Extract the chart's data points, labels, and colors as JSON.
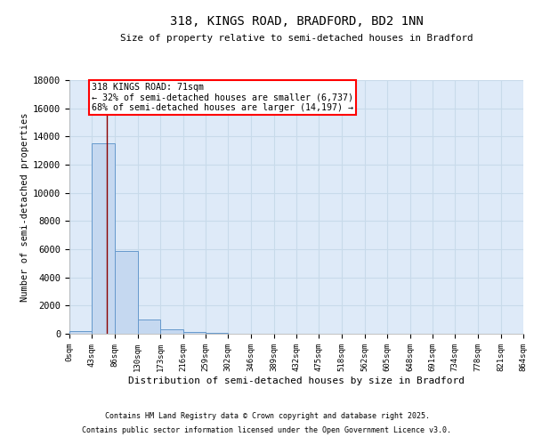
{
  "title": "318, KINGS ROAD, BRADFORD, BD2 1NN",
  "subtitle": "Size of property relative to semi-detached houses in Bradford",
  "xlabel": "Distribution of semi-detached houses by size in Bradford",
  "ylabel": "Number of semi-detached properties",
  "bin_edges": [
    0,
    43,
    86,
    130,
    173,
    216,
    259,
    302,
    346,
    389,
    432,
    475,
    518,
    562,
    605,
    648,
    691,
    734,
    778,
    821,
    864
  ],
  "bar_heights": [
    200,
    13500,
    5900,
    1000,
    300,
    100,
    50,
    0,
    0,
    0,
    0,
    0,
    0,
    0,
    0,
    0,
    0,
    0,
    0,
    0
  ],
  "bar_color": "#c5d8f0",
  "bar_edge_color": "#6699cc",
  "grid_color": "#c8daea",
  "background_color": "#deeaf8",
  "red_line_x": 71,
  "annotation_text": "318 KINGS ROAD: 71sqm\n← 32% of semi-detached houses are smaller (6,737)\n68% of semi-detached houses are larger (14,197) →",
  "ylim": [
    0,
    18000
  ],
  "yticks": [
    0,
    2000,
    4000,
    6000,
    8000,
    10000,
    12000,
    14000,
    16000,
    18000
  ],
  "footnote1": "Contains HM Land Registry data © Crown copyright and database right 2025.",
  "footnote2": "Contains public sector information licensed under the Open Government Licence v3.0."
}
